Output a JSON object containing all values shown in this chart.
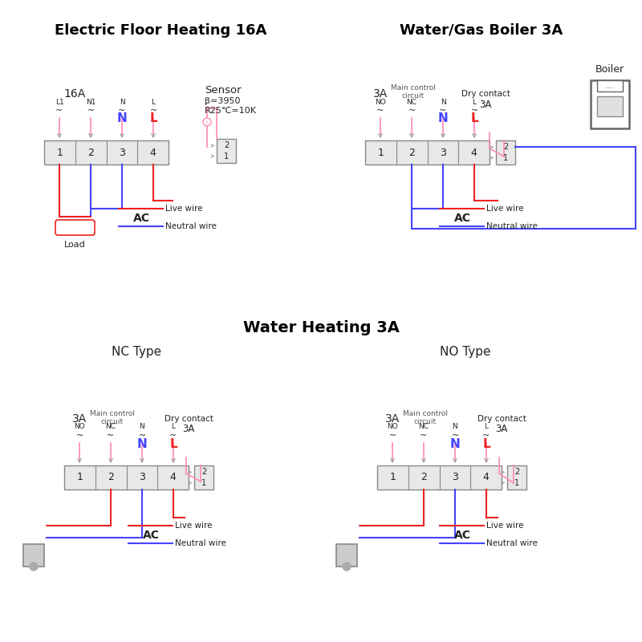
{
  "bg_color": "#ffffff",
  "title_color": "#000000",
  "pink_color": "#FF88BB",
  "blue_color": "#4444FF",
  "red_color": "#EE2222",
  "gray_color": "#999999",
  "dark_text": "#333333",
  "section1_title": "Electric Floor Heating 16A",
  "section2_title": "Water/Gas Boiler 3A",
  "section3_title": "Water Heating 3A",
  "sub3_title1": "NC Type",
  "sub3_title2": "NO Type"
}
